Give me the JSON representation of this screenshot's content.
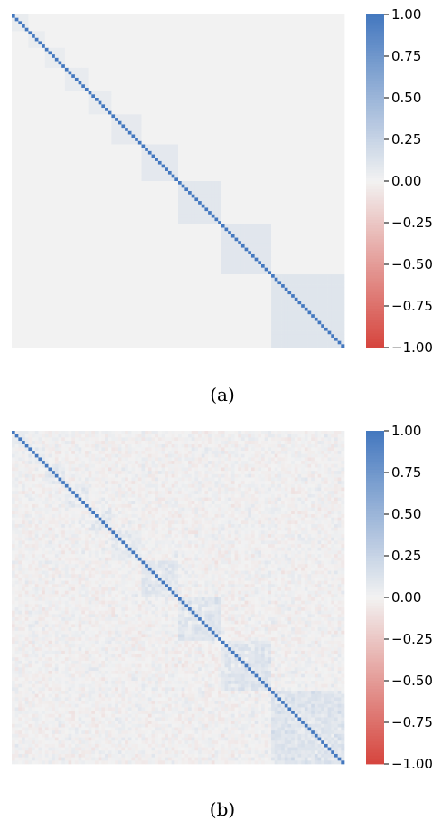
{
  "chart_data": [
    {
      "type": "heatmap",
      "caption": "(a)",
      "size": 100,
      "diagonal_value": 1.0,
      "block_sizes": [
        5,
        5,
        6,
        7,
        7,
        9,
        11,
        13,
        15,
        15
      ],
      "block_values": [
        0.05,
        0.05,
        0.05,
        0.06,
        0.06,
        0.07,
        0.08,
        0.09,
        0.1,
        0.11
      ],
      "background_value": 0.0,
      "colorbar": {
        "min": -1.0,
        "max": 1.0,
        "ticks": [
          1.0,
          0.75,
          0.5,
          0.25,
          0.0,
          -0.25,
          -0.5,
          -0.75,
          -1.0
        ],
        "tick_labels": [
          "1.00",
          "0.75",
          "0.50",
          "0.25",
          "0.00",
          "−0.25",
          "−0.50",
          "−0.75",
          "−1.00"
        ]
      },
      "colormap": {
        "low": "#d6453d",
        "mid": "#f2f2f2",
        "high": "#4478bf"
      },
      "axis_ticks": false,
      "grid": false
    },
    {
      "type": "heatmap",
      "caption": "(b)",
      "size": 100,
      "diagonal_value": 1.0,
      "block_sizes": [
        5,
        5,
        6,
        7,
        7,
        9,
        11,
        13,
        15,
        15
      ],
      "block_values": [
        0.05,
        0.05,
        0.05,
        0.06,
        0.06,
        0.07,
        0.08,
        0.09,
        0.1,
        0.11
      ],
      "noise_amplitude": 0.12,
      "background_value": 0.0,
      "colorbar": {
        "min": -1.0,
        "max": 1.0,
        "ticks": [
          1.0,
          0.75,
          0.5,
          0.25,
          0.0,
          -0.25,
          -0.5,
          -0.75,
          -1.0
        ],
        "tick_labels": [
          "1.00",
          "0.75",
          "0.50",
          "0.25",
          "0.00",
          "−0.25",
          "−0.50",
          "−0.75",
          "−1.00"
        ]
      },
      "colormap": {
        "low": "#d6453d",
        "mid": "#f2f2f2",
        "high": "#4478bf"
      },
      "axis_ticks": false,
      "grid": false
    }
  ]
}
